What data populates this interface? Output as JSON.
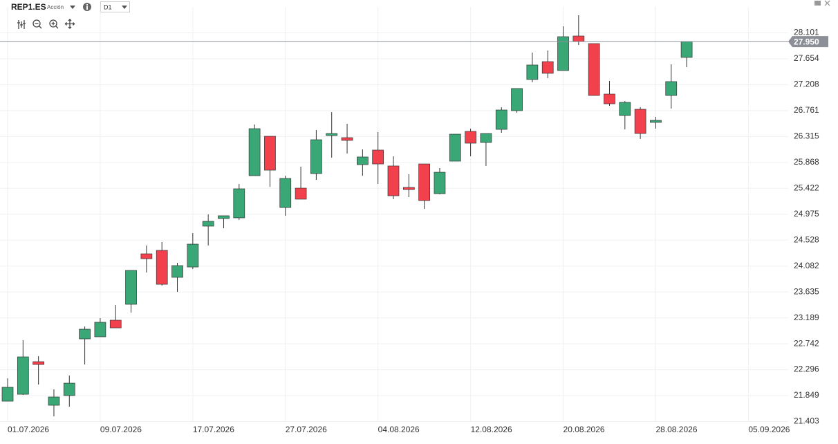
{
  "header": {
    "symbol": "REP1.ES",
    "instrument_type": "Acción",
    "timeframe": "D1"
  },
  "chart_data": {
    "type": "candlestick",
    "categories": [
      "01.07.2026",
      null,
      null,
      null,
      null,
      null,
      "09.07.2026",
      null,
      null,
      null,
      null,
      null,
      "17.07.2026",
      null,
      null,
      null,
      null,
      null,
      "27.07.2026",
      null,
      null,
      null,
      null,
      null,
      "04.08.2026",
      null,
      null,
      null,
      null,
      null,
      "12.08.2026",
      null,
      null,
      null,
      null,
      null,
      "20.08.2026",
      null,
      null,
      null,
      null,
      null,
      "28.08.2026",
      null,
      null,
      null,
      null,
      null,
      "05.09.2026"
    ],
    "open": [
      21.754,
      21.873,
      22.434,
      21.683,
      21.85,
      22.827,
      22.863,
      23.149,
      23.423,
      24.293,
      24.352,
      23.888,
      24.066,
      24.77,
      24.901,
      24.913,
      25.64,
      26.319,
      25.091,
      25.425,
      25.676,
      26.331,
      26.295,
      25.83,
      26.081,
      25.807,
      25.437,
      25.842,
      25.33,
      25.89,
      26.403,
      26.212,
      26.438,
      26.76,
      27.297,
      27.605,
      27.451,
      28.047,
      27.916,
      27.046,
      26.677,
      26.784,
      26.558,
      27.022,
      27.678,
      null,
      null,
      null,
      null
    ],
    "high": [
      22.148,
      22.803,
      22.529,
      21.957,
      22.195,
      23.041,
      23.184,
      23.411,
      24.007,
      24.436,
      24.496,
      24.138,
      24.651,
      24.972,
      24.949,
      25.496,
      26.522,
      26.319,
      25.64,
      25.795,
      26.426,
      26.736,
      26.534,
      26.093,
      26.391,
      25.974,
      25.664,
      25.842,
      25.771,
      26.355,
      26.45,
      26.367,
      26.82,
      27.142,
      27.762,
      27.797,
      28.214,
      28.405,
      27.916,
      27.273,
      26.927,
      26.82,
      26.653,
      27.559,
      27.95,
      null,
      null,
      null,
      null
    ],
    "low": [
      21.754,
      21.861,
      22.04,
      21.492,
      21.659,
      22.386,
      22.863,
      23.017,
      23.28,
      23.971,
      23.745,
      23.637,
      24.031,
      24.436,
      24.734,
      24.877,
      25.64,
      25.449,
      24.949,
      25.235,
      25.568,
      25.95,
      26.021,
      25.64,
      25.497,
      25.235,
      25.27,
      25.068,
      25.318,
      25.89,
      25.974,
      25.807,
      26.379,
      26.724,
      27.249,
      27.32,
      27.451,
      27.892,
      27.022,
      26.844,
      26.438,
      26.272,
      26.45,
      26.796,
      27.511,
      null,
      null,
      null,
      null
    ],
    "close": [
      21.993,
      22.517,
      22.386,
      21.826,
      22.064,
      22.994,
      23.113,
      23.017,
      24.007,
      24.209,
      23.768,
      24.09,
      24.46,
      24.853,
      24.949,
      25.413,
      26.45,
      25.735,
      25.592,
      25.235,
      26.259,
      26.367,
      26.248,
      25.962,
      25.842,
      25.294,
      25.401,
      25.211,
      25.699,
      26.355,
      26.2,
      26.367,
      26.772,
      27.142,
      27.547,
      27.404,
      28.035,
      27.952,
      27.022,
      26.879,
      26.903,
      26.367,
      26.593,
      27.261,
      27.95,
      null,
      null,
      null,
      null
    ],
    "up_color": "#3aa876",
    "down_color": "#f2404d",
    "ylim": [
      21.397,
      28.548
    ],
    "yticks": [
      28.101,
      27.654,
      27.208,
      26.761,
      26.315,
      25.868,
      25.422,
      24.975,
      24.528,
      24.082,
      23.635,
      23.189,
      22.742,
      22.296,
      21.849,
      21.403
    ],
    "last_price": {
      "value": 27.95,
      "label": "27.950"
    },
    "grid": true
  }
}
